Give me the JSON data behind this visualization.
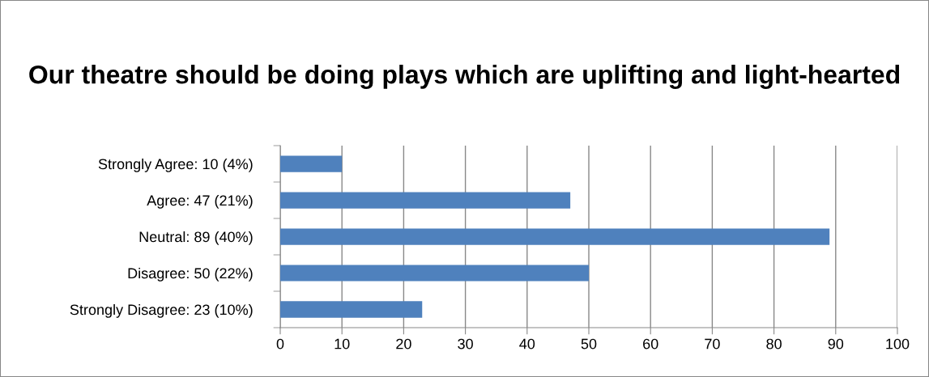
{
  "chart_data": {
    "type": "bar",
    "orientation": "horizontal",
    "title": "Our theatre should be doing plays which are uplifting and light-hearted",
    "categories": [
      "Strongly Agree: 10 (4%)",
      "Agree: 47 (21%)",
      "Neutral: 89 (40%)",
      "Disagree: 50 (22%)",
      "Strongly Disagree: 23 (10%)"
    ],
    "values": [
      10,
      47,
      89,
      50,
      23
    ],
    "color": "#4f81bd",
    "xlim": [
      0,
      100
    ],
    "xticks": [
      0,
      10,
      20,
      30,
      40,
      50,
      60,
      70,
      80,
      90,
      100
    ],
    "grid": "x",
    "legend": false
  }
}
